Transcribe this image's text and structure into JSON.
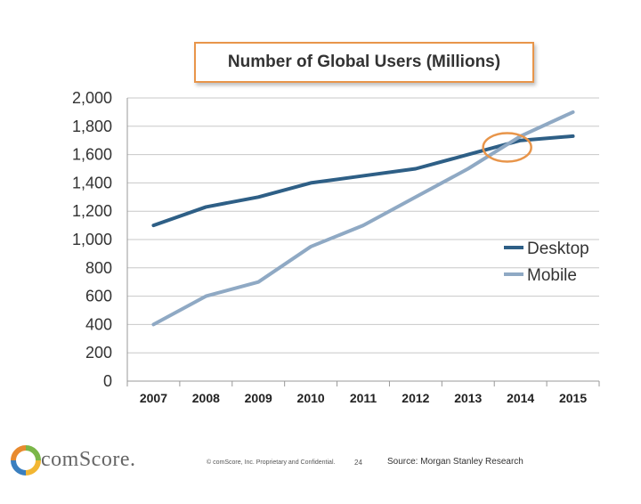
{
  "chart_data": {
    "type": "line",
    "title": "Number of Global Users (Millions)",
    "categories": [
      "2007",
      "2008",
      "2009",
      "2010",
      "2011",
      "2012",
      "2013",
      "2014",
      "2015"
    ],
    "ylim": [
      0,
      2000
    ],
    "yticks": [
      "0",
      "200",
      "400",
      "600",
      "800",
      "1,000",
      "1,200",
      "1,400",
      "1,600",
      "1,800",
      "2,000"
    ],
    "grid": true,
    "legend_position": "right",
    "series": [
      {
        "name": "Desktop",
        "color": "#2e5f86",
        "values": [
          1100,
          1230,
          1300,
          1400,
          1450,
          1500,
          1600,
          1700,
          1730
        ]
      },
      {
        "name": "Mobile",
        "color": "#8fa9c4",
        "values": [
          400,
          600,
          700,
          950,
          1100,
          1300,
          1500,
          1730,
          1900
        ]
      }
    ],
    "annotation": {
      "type": "ellipse",
      "color": "#e8954a",
      "near_category": "2014",
      "near_value": 1670
    }
  },
  "footer": {
    "logo_text": "comScore.",
    "copyright": "© comScore, Inc.  Proprietary and Confidential.",
    "page_number": "24",
    "source": "Source: Morgan Stanley Research"
  }
}
